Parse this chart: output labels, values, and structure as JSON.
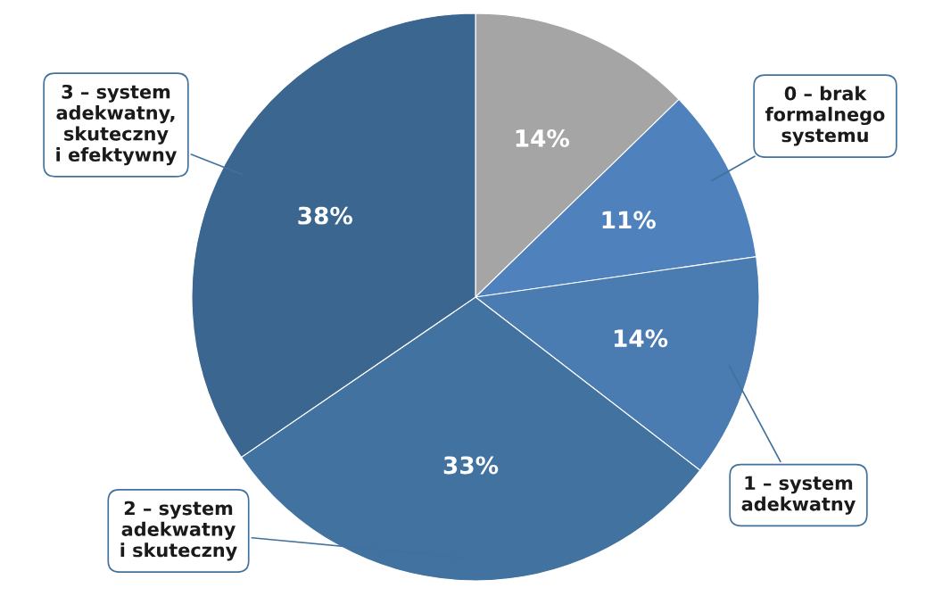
{
  "chart_data": {
    "type": "pie",
    "categories": [
      null,
      "0 – brak\nformalnego\nsystemu",
      "1 – system\nadekwatny",
      "2 – system\nadekwatny\ni skuteczny",
      "3 – system\nadekwatny,\nskuteczny\ni efektywny"
    ],
    "values": [
      14,
      11,
      14,
      33,
      38
    ],
    "value_labels": [
      "14%",
      "11%",
      "14%",
      "33%",
      "38%"
    ],
    "colors": [
      "#a5a5a5",
      "#4f81bd",
      "#4a7cb2",
      "#42729f",
      "#3b6690"
    ],
    "legend": false
  }
}
